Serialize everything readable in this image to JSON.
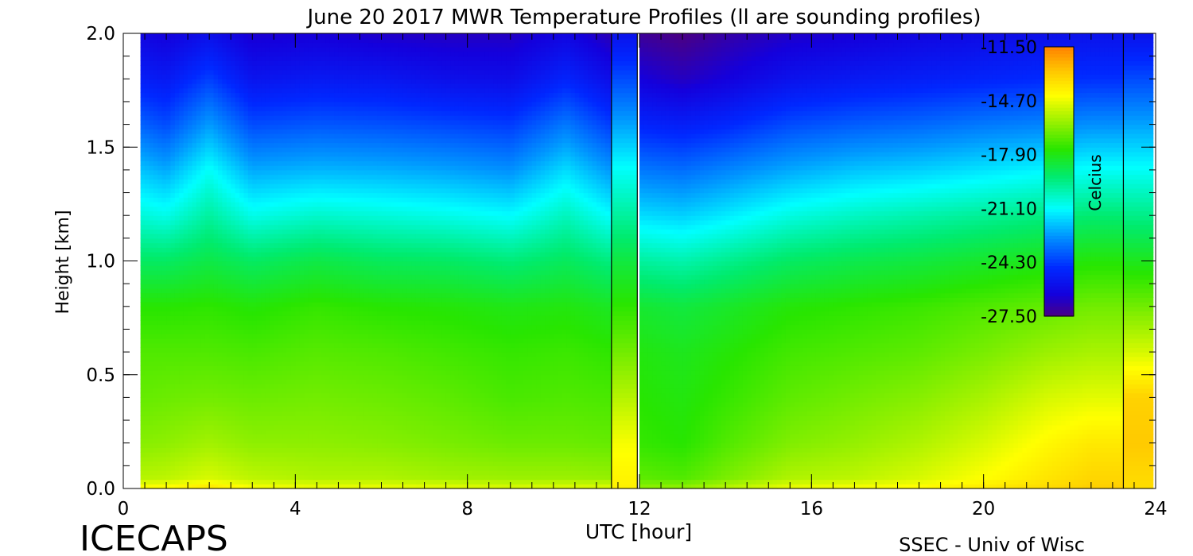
{
  "chart_data": {
    "type": "heatmap",
    "title": "June 20 2017 MWR Temperature Profiles (ll are sounding profiles)",
    "xlabel": "UTC [hour]",
    "ylabel": "Height [km]",
    "xlim": [
      0,
      24
    ],
    "ylim": [
      0,
      2.0
    ],
    "x_ticks": [
      "0",
      "4",
      "8",
      "12",
      "16",
      "20",
      "24"
    ],
    "y_ticks": [
      "0.0",
      "0.5",
      "1.0",
      "1.5",
      "2.0"
    ],
    "x_minor_step": 0.5,
    "y_minor_step": 0.1,
    "data_coverage": [
      [
        0.4,
        11.35
      ],
      [
        12.0,
        23.25
      ]
    ],
    "sounding_times": [
      11.35,
      11.95,
      23.25
    ],
    "sounding_panels": [
      {
        "x": [
          11.35,
          11.95
        ],
        "temps": [
          -14,
          -14.5,
          -15.5,
          -16.5,
          -17.5,
          -18.5,
          -19.8,
          -21,
          -22.5,
          -24,
          -25.5
        ]
      },
      {
        "x": [
          23.25,
          23.95
        ],
        "temps": [
          -13.5,
          -13.0,
          -13.2,
          -15.0,
          -16.5,
          -18.0,
          -19.5,
          -21.0,
          -22.5,
          -24.0,
          -25.5
        ]
      }
    ],
    "colorbar": {
      "label": "Celcius",
      "range": [
        -27.5,
        -11.5
      ],
      "tick_labels": [
        "-11.50",
        "-14.70",
        "-17.90",
        "-21.10",
        "-24.30",
        "-27.50"
      ]
    },
    "profile_control_points": {
      "heights_km": [
        0,
        0.05,
        0.2,
        0.4,
        0.6,
        0.8,
        1.0,
        1.2,
        1.4,
        1.6,
        1.8,
        2.0
      ],
      "series": [
        {
          "t": 0.4,
          "temps": [
            -14.2,
            -15.5,
            -16.2,
            -16.7,
            -17.0,
            -17.6,
            -19.0,
            -20.6,
            -22.0,
            -23.6,
            -25.0,
            -26.0
          ]
        },
        {
          "t": 1.0,
          "temps": [
            -14.2,
            -15.4,
            -16.1,
            -16.6,
            -17.0,
            -17.6,
            -19.0,
            -20.8,
            -22.4,
            -24.0,
            -25.2,
            -26.2
          ]
        },
        {
          "t": 2.0,
          "temps": [
            -13.6,
            -15.0,
            -15.8,
            -16.5,
            -17.0,
            -17.5,
            -18.6,
            -19.8,
            -21.0,
            -22.6,
            -24.2,
            -25.6
          ]
        },
        {
          "t": 3.0,
          "temps": [
            -14.4,
            -15.4,
            -16.1,
            -16.6,
            -17.1,
            -17.7,
            -19.0,
            -20.8,
            -22.4,
            -24.0,
            -25.4,
            -26.4
          ]
        },
        {
          "t": 4.5,
          "temps": [
            -14.6,
            -15.6,
            -16.1,
            -16.5,
            -16.9,
            -17.4,
            -18.6,
            -20.4,
            -22.2,
            -23.8,
            -25.2,
            -26.3
          ]
        },
        {
          "t": 6.0,
          "temps": [
            -14.6,
            -15.6,
            -16.2,
            -16.6,
            -17.0,
            -17.6,
            -18.9,
            -20.6,
            -22.3,
            -23.9,
            -25.3,
            -26.5
          ]
        },
        {
          "t": 7.5,
          "temps": [
            -14.7,
            -15.8,
            -16.4,
            -16.8,
            -17.2,
            -17.7,
            -19.0,
            -20.8,
            -22.5,
            -24.1,
            -25.6,
            -26.6
          ]
        },
        {
          "t": 9.0,
          "temps": [
            -14.9,
            -15.9,
            -16.6,
            -17.1,
            -17.4,
            -17.9,
            -19.3,
            -21.1,
            -22.8,
            -24.3,
            -25.7,
            -26.6
          ]
        },
        {
          "t": 10.3,
          "temps": [
            -14.8,
            -15.9,
            -16.6,
            -17.0,
            -17.3,
            -17.8,
            -18.9,
            -20.2,
            -21.6,
            -23.2,
            -24.8,
            -26.0
          ]
        },
        {
          "t": 11.35,
          "temps": [
            -14.8,
            -16.0,
            -16.7,
            -17.1,
            -17.5,
            -18.1,
            -19.4,
            -21.1,
            -22.7,
            -24.3,
            -25.7,
            -26.8
          ]
        },
        {
          "t": 12.0,
          "temps": [
            -16.0,
            -16.8,
            -17.4,
            -17.6,
            -17.8,
            -18.3,
            -19.8,
            -21.6,
            -23.2,
            -24.8,
            -26.2,
            -27.2
          ]
        },
        {
          "t": 13.0,
          "temps": [
            -16.0,
            -17.0,
            -17.6,
            -17.8,
            -18.0,
            -18.5,
            -20.0,
            -21.8,
            -23.4,
            -25.0,
            -26.6,
            -27.5
          ]
        },
        {
          "t": 14.0,
          "temps": [
            -15.4,
            -16.4,
            -17.0,
            -17.4,
            -17.7,
            -18.2,
            -19.6,
            -21.4,
            -23.0,
            -24.7,
            -26.2,
            -27.0
          ]
        },
        {
          "t": 15.5,
          "temps": [
            -14.6,
            -15.6,
            -16.3,
            -16.8,
            -17.2,
            -17.7,
            -19.0,
            -20.7,
            -22.4,
            -24.0,
            -25.5,
            -26.5
          ]
        },
        {
          "t": 17.0,
          "temps": [
            -14.4,
            -15.4,
            -16.0,
            -16.5,
            -17.0,
            -17.5,
            -18.7,
            -20.3,
            -22.0,
            -23.7,
            -25.2,
            -26.3
          ]
        },
        {
          "t": 18.5,
          "temps": [
            -14.2,
            -15.0,
            -15.6,
            -16.2,
            -16.8,
            -17.3,
            -18.5,
            -20.0,
            -21.8,
            -23.5,
            -25.0,
            -26.0
          ]
        },
        {
          "t": 20.0,
          "temps": [
            -13.8,
            -14.4,
            -15.0,
            -15.7,
            -16.4,
            -17.0,
            -18.2,
            -19.7,
            -21.5,
            -23.2,
            -24.8,
            -25.8
          ]
        },
        {
          "t": 21.5,
          "temps": [
            -13.4,
            -13.7,
            -14.2,
            -15.0,
            -15.9,
            -16.7,
            -17.9,
            -19.4,
            -21.2,
            -23.0,
            -24.6,
            -25.6
          ]
        },
        {
          "t": 22.5,
          "temps": [
            -13.1,
            -13.3,
            -13.8,
            -14.8,
            -15.7,
            -16.5,
            -17.7,
            -19.2,
            -21.0,
            -22.8,
            -24.5,
            -25.5
          ]
        },
        {
          "t": 23.25,
          "temps": [
            -13.1,
            -13.3,
            -13.8,
            -14.8,
            -15.7,
            -16.5,
            -17.7,
            -19.2,
            -21.0,
            -22.8,
            -24.5,
            -25.5
          ]
        }
      ]
    }
  },
  "footer": {
    "left": "ICECAPS",
    "right": "SSEC - Univ of Wisc"
  }
}
